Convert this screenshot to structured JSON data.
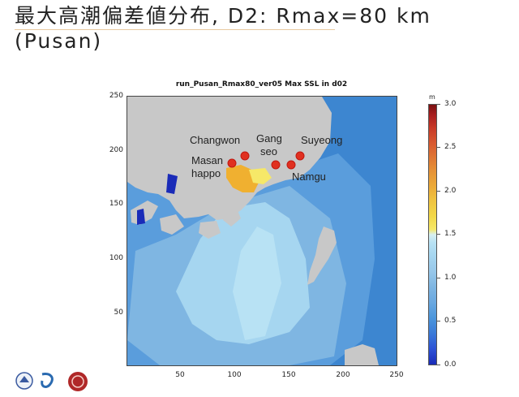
{
  "slide": {
    "title_line1": "最大高潮偏差値分布, D2: Rmax=80 km",
    "title_line2": "(Pusan)"
  },
  "plot": {
    "title": "run_Pusan_Rmax80_ver05 Max SSL in d02",
    "yticks": [
      "250",
      "200",
      "150",
      "100",
      "50"
    ],
    "xticks": [
      "50",
      "100",
      "150",
      "200",
      "250"
    ]
  },
  "places": {
    "changwon": "Changwon",
    "gang1": "Gang",
    "gang2": "seo",
    "suyeong": "Suyeong",
    "masan1": "Masan",
    "masan2": "happo",
    "namgu": "Namgu"
  },
  "colorbar": {
    "unit": "m",
    "ticks": [
      "3.0",
      "2.5",
      "2.0",
      "1.5",
      "1.0",
      "0.5",
      "0.0"
    ]
  },
  "colors": {
    "land": "#c8c8c8",
    "sea_outer": "#3d86d0",
    "sea_mid": "#6aa8e0",
    "sea_inner": "#a6d6f0",
    "surge_high": "#f0b030",
    "marker": "#e03020"
  }
}
